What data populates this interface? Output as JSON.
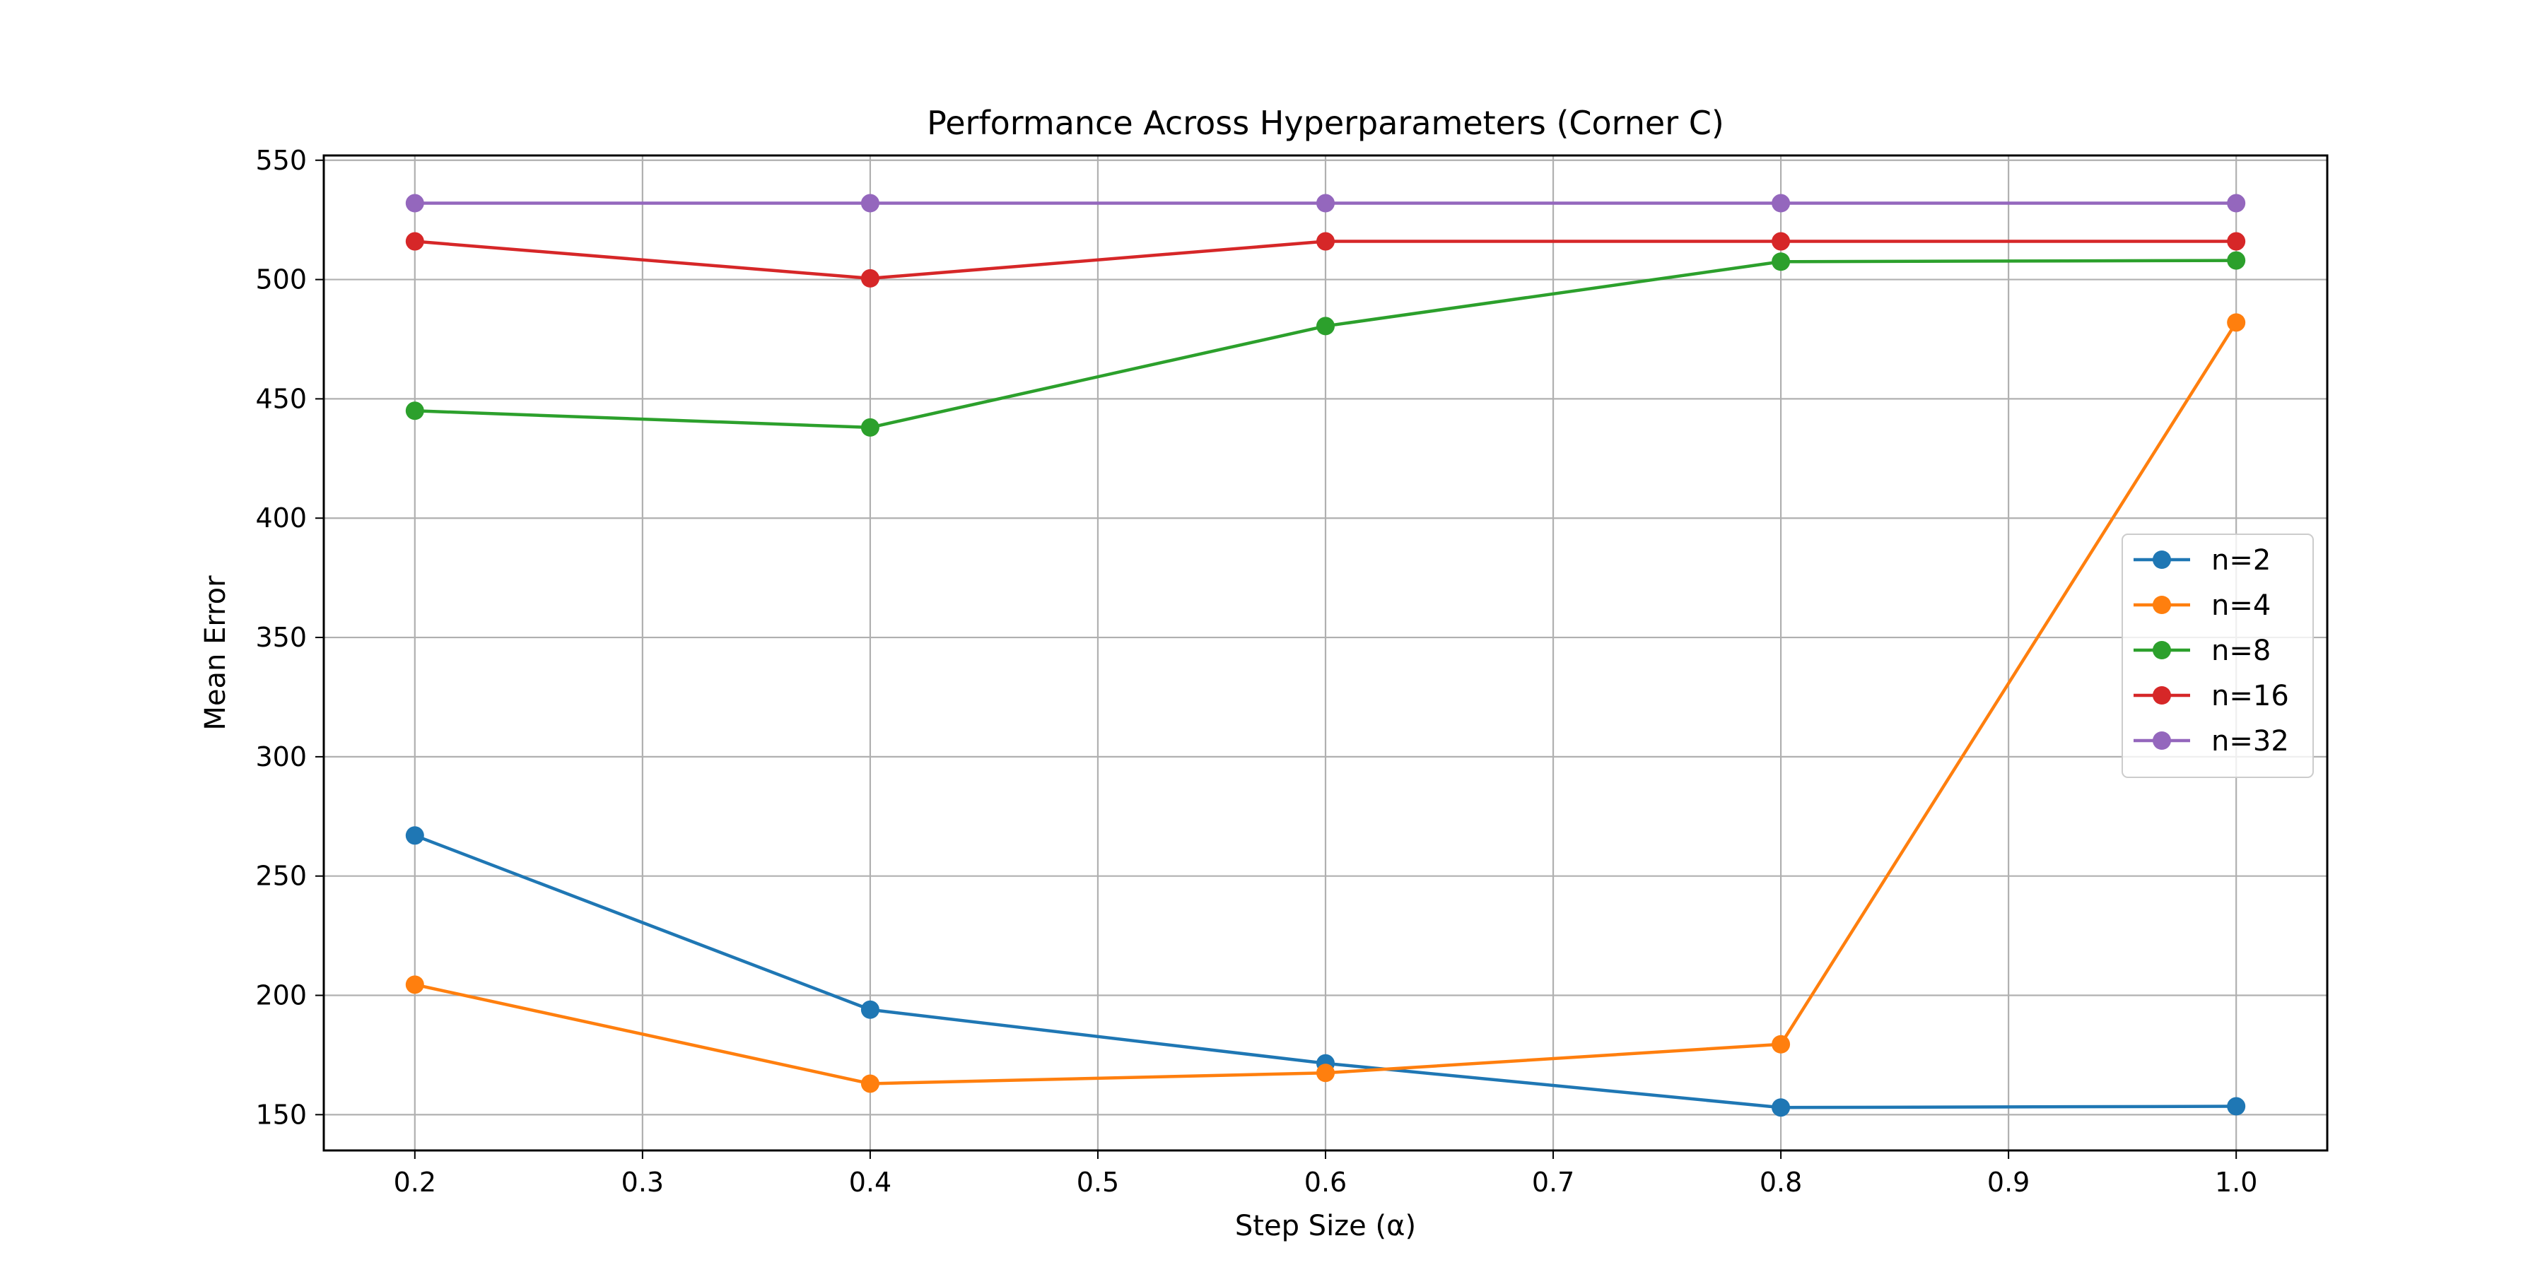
{
  "chart_data": {
    "type": "line",
    "title": "Performance Across Hyperparameters (Corner C)",
    "xlabel": "Step Size (α)",
    "ylabel": "Mean Error",
    "xlim": [
      0.16,
      1.04
    ],
    "ylim": [
      135,
      552
    ],
    "xticks": [
      0.2,
      0.3,
      0.4,
      0.5,
      0.6,
      0.7,
      0.8,
      0.9,
      1.0
    ],
    "xtick_labels": [
      "0.2",
      "0.3",
      "0.4",
      "0.5",
      "0.6",
      "0.7",
      "0.8",
      "0.9",
      "1.0"
    ],
    "yticks": [
      150,
      200,
      250,
      300,
      350,
      400,
      450,
      500,
      550
    ],
    "ytick_labels": [
      "150",
      "200",
      "250",
      "300",
      "350",
      "400",
      "450",
      "500",
      "550"
    ],
    "grid": true,
    "legend_position": "right",
    "x": [
      0.2,
      0.4,
      0.6,
      0.8,
      1.0
    ],
    "series": [
      {
        "name": "n=2",
        "color": "#1f77b4",
        "values": [
          267,
          194,
          171.5,
          153,
          153.5
        ]
      },
      {
        "name": "n=4",
        "color": "#ff7f0e",
        "values": [
          204.5,
          163,
          167.5,
          179.5,
          482
        ]
      },
      {
        "name": "n=8",
        "color": "#2ca02c",
        "values": [
          445,
          438,
          480.5,
          507.5,
          508
        ]
      },
      {
        "name": "n=16",
        "color": "#d62728",
        "values": [
          516,
          500.5,
          516,
          516,
          516
        ]
      },
      {
        "name": "n=32",
        "color": "#9467bd",
        "values": [
          532,
          532,
          532,
          532,
          532
        ]
      }
    ]
  }
}
